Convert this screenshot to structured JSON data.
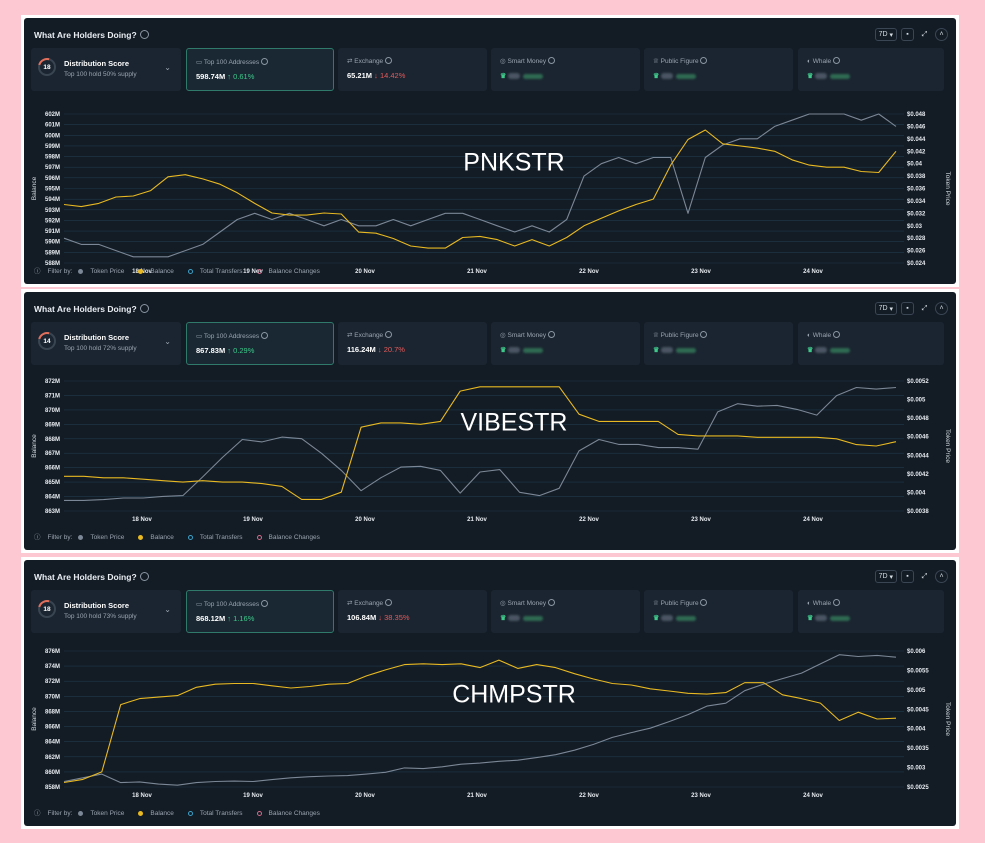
{
  "common": {
    "title": "What Are Holders Doing?",
    "timeframe": "7D",
    "filter_label": "Filter by:",
    "filters": [
      "Token Price",
      "Balance",
      "Total Transfers",
      "Balance Changes"
    ],
    "distribution_label": "Distribution Score",
    "top100_label": "Top 100 Addresses",
    "exchange_label": "Exchange",
    "smart_money_label": "Smart Money",
    "public_figure_label": "Public Figure",
    "whale_label": "Whale",
    "colors": {
      "balance": "#e8b922",
      "price": "#7b8796",
      "up": "#3ec98a",
      "down": "#e45b5b"
    }
  },
  "panels": [
    {
      "watermark": "PNKSTR",
      "distribution_score": "18",
      "distribution_sub": "Top 100 hold 50% supply",
      "top100_value": "598.74M",
      "top100_change": "↑ 0.61%",
      "exchange_value": "65.21M",
      "exchange_change": "↓ 14.42%",
      "chart_data": {
        "type": "line",
        "x_ticks": [
          "18 Nov",
          "19 Nov",
          "20 Nov",
          "21 Nov",
          "22 Nov",
          "23 Nov",
          "24 Nov"
        ],
        "ylabel": "Balance",
        "y2label": "Token Price",
        "left_ticks": [
          "602M",
          "601M",
          "600M",
          "599M",
          "598M",
          "597M",
          "596M",
          "595M",
          "594M",
          "593M",
          "592M",
          "591M",
          "590M",
          "589M",
          "588M"
        ],
        "right_ticks": [
          "$0.048",
          "$0.046",
          "$0.044",
          "$0.042",
          "$0.04",
          "$0.038",
          "$0.036",
          "$0.034",
          "$0.032",
          "$0.03",
          "$0.028",
          "$0.026",
          "$0.024"
        ],
        "ylim": [
          588,
          602
        ],
        "y2lim": [
          0.024,
          0.048
        ],
        "series": [
          {
            "name": "Balance",
            "values": [
              593.5,
              593.3,
              593.6,
              594.2,
              594.3,
              594.8,
              596.1,
              596.3,
              595.9,
              595.4,
              594.6,
              593.6,
              592.7,
              592.5,
              592.5,
              592.7,
              592.6,
              590.9,
              590.8,
              590.3,
              589.6,
              589.4,
              589.4,
              590.4,
              590.5,
              590.2,
              589.6,
              590.2,
              589.6,
              590.4,
              591.5,
              592.2,
              592.9,
              593.5,
              594.0,
              597.2,
              599.6,
              600.5,
              599.2,
              599.0,
              598.8,
              598.5,
              597.7,
              597.2,
              597.0,
              597.0,
              596.6,
              596.5,
              598.5
            ]
          },
          {
            "name": "Token Price",
            "values": [
              0.028,
              0.027,
              0.027,
              0.026,
              0.025,
              0.025,
              0.025,
              0.026,
              0.027,
              0.029,
              0.031,
              0.032,
              0.031,
              0.032,
              0.031,
              0.03,
              0.031,
              0.03,
              0.03,
              0.031,
              0.03,
              0.031,
              0.032,
              0.032,
              0.031,
              0.03,
              0.029,
              0.03,
              0.029,
              0.031,
              0.038,
              0.04,
              0.041,
              0.04,
              0.041,
              0.041,
              0.032,
              0.041,
              0.043,
              0.044,
              0.044,
              0.046,
              0.047,
              0.048,
              0.048,
              0.048,
              0.047,
              0.048,
              0.046
            ]
          }
        ]
      }
    },
    {
      "watermark": "VIBESTR",
      "distribution_score": "14",
      "distribution_sub": "Top 100 hold 72% supply",
      "top100_value": "867.83M",
      "top100_change": "↑ 0.29%",
      "exchange_value": "116.24M",
      "exchange_change": "↓ 20.7%",
      "chart_data": {
        "type": "line",
        "x_ticks": [
          "18 Nov",
          "19 Nov",
          "20 Nov",
          "21 Nov",
          "22 Nov",
          "23 Nov",
          "24 Nov"
        ],
        "ylabel": "Balance",
        "y2label": "Token Price",
        "left_ticks": [
          "872M",
          "871M",
          "870M",
          "869M",
          "868M",
          "867M",
          "866M",
          "865M",
          "864M",
          "863M"
        ],
        "right_ticks": [
          "$0.0052",
          "$0.005",
          "$0.0048",
          "$0.0046",
          "$0.0044",
          "$0.0042",
          "$0.004",
          "$0.0038"
        ],
        "ylim": [
          863,
          872
        ],
        "y2lim": [
          0.0037,
          0.0053
        ],
        "series": [
          {
            "name": "Balance",
            "values": [
              865.4,
              865.4,
              865.3,
              865.3,
              865.2,
              865.1,
              865.0,
              865.1,
              865.0,
              865.0,
              864.9,
              864.7,
              863.8,
              863.8,
              864.3,
              868.8,
              869.1,
              869.1,
              869.0,
              869.2,
              871.3,
              871.6,
              871.6,
              871.6,
              871.6,
              871.6,
              869.7,
              869.2,
              869.2,
              869.2,
              869.2,
              868.3,
              868.2,
              868.2,
              868.2,
              868.1,
              868.1,
              868.1,
              868.1,
              868.0,
              867.6,
              867.5,
              867.8
            ]
          },
          {
            "name": "Token Price",
            "values": [
              0.00383,
              0.00383,
              0.00384,
              0.00386,
              0.00386,
              0.00388,
              0.00389,
              0.00412,
              0.00436,
              0.00458,
              0.00455,
              0.00461,
              0.00459,
              0.00441,
              0.0042,
              0.00395,
              0.00411,
              0.00424,
              0.00425,
              0.0042,
              0.00392,
              0.00418,
              0.00421,
              0.00393,
              0.00389,
              0.00398,
              0.00444,
              0.00458,
              0.00452,
              0.00452,
              0.00448,
              0.00448,
              0.00446,
              0.00492,
              0.00502,
              0.00499,
              0.005,
              0.00495,
              0.00488,
              0.00512,
              0.00522,
              0.0052,
              0.00522
            ]
          }
        ]
      }
    },
    {
      "watermark": "CHMPSTR",
      "distribution_score": "18",
      "distribution_sub": "Top 100 hold 73% supply",
      "top100_value": "868.12M",
      "top100_change": "↑ 1.16%",
      "exchange_value": "106.84M",
      "exchange_change": "↓ 38.35%",
      "chart_data": {
        "type": "line",
        "x_ticks": [
          "18 Nov",
          "19 Nov",
          "20 Nov",
          "21 Nov",
          "22 Nov",
          "23 Nov",
          "24 Nov"
        ],
        "ylabel": "Balance",
        "y2label": "Token Price",
        "left_ticks": [
          "876M",
          "874M",
          "872M",
          "870M",
          "868M",
          "866M",
          "864M",
          "862M",
          "860M",
          "858M"
        ],
        "right_ticks": [
          "$0.006",
          "$0.0055",
          "$0.005",
          "$0.0045",
          "$0.004",
          "$0.0035",
          "$0.003",
          "$0.0025"
        ],
        "ylim": [
          858,
          876
        ],
        "y2lim": [
          0.0025,
          0.0062
        ],
        "series": [
          {
            "name": "Balance",
            "values": [
              858.6,
              859.0,
              860.0,
              868.9,
              869.7,
              869.9,
              870.1,
              871.2,
              871.6,
              871.7,
              871.7,
              871.4,
              871.1,
              871.3,
              871.6,
              871.7,
              872.7,
              873.5,
              874.2,
              874.3,
              874.2,
              874.3,
              873.8,
              874.8,
              873.7,
              874.2,
              873.8,
              873.0,
              872.3,
              871.7,
              871.5,
              871.0,
              870.7,
              870.4,
              870.3,
              870.5,
              871.8,
              871.8,
              870.2,
              869.7,
              869.1,
              866.8,
              867.9,
              867.0,
              867.1
            ]
          },
          {
            "name": "Token Price",
            "values": [
              0.00265,
              0.00275,
              0.00285,
              0.00262,
              0.00264,
              0.00258,
              0.00255,
              0.00262,
              0.00265,
              0.00266,
              0.00265,
              0.0027,
              0.00275,
              0.00278,
              0.0028,
              0.00281,
              0.00285,
              0.0029,
              0.00302,
              0.003,
              0.00305,
              0.00312,
              0.00315,
              0.0032,
              0.00323,
              0.0033,
              0.00338,
              0.0035,
              0.00366,
              0.00385,
              0.00398,
              0.0041,
              0.00428,
              0.00447,
              0.0047,
              0.00478,
              0.00512,
              0.0053,
              0.00545,
              0.0056,
              0.00585,
              0.0061,
              0.00605,
              0.00608,
              0.00603
            ]
          }
        ]
      }
    }
  ]
}
